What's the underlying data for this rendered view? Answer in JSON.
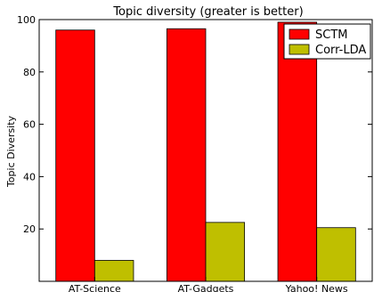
{
  "chart_data": {
    "type": "bar",
    "title": "Topic diversity (greater is better)",
    "xlabel": "",
    "ylabel": "Topic Diversity",
    "categories": [
      "AT-Science",
      "AT-Gadgets",
      "Yahoo! News"
    ],
    "series": [
      {
        "name": "SCTM",
        "values": [
          96,
          96.5,
          99
        ],
        "color": "#ff0000"
      },
      {
        "name": "Corr-LDA",
        "values": [
          8,
          22.5,
          20.5
        ],
        "color": "#bfbf00"
      }
    ],
    "ylim": [
      0,
      100
    ],
    "yticks": [
      20,
      40,
      60,
      80,
      100
    ],
    "grid": false,
    "legend_position": "top-right"
  }
}
